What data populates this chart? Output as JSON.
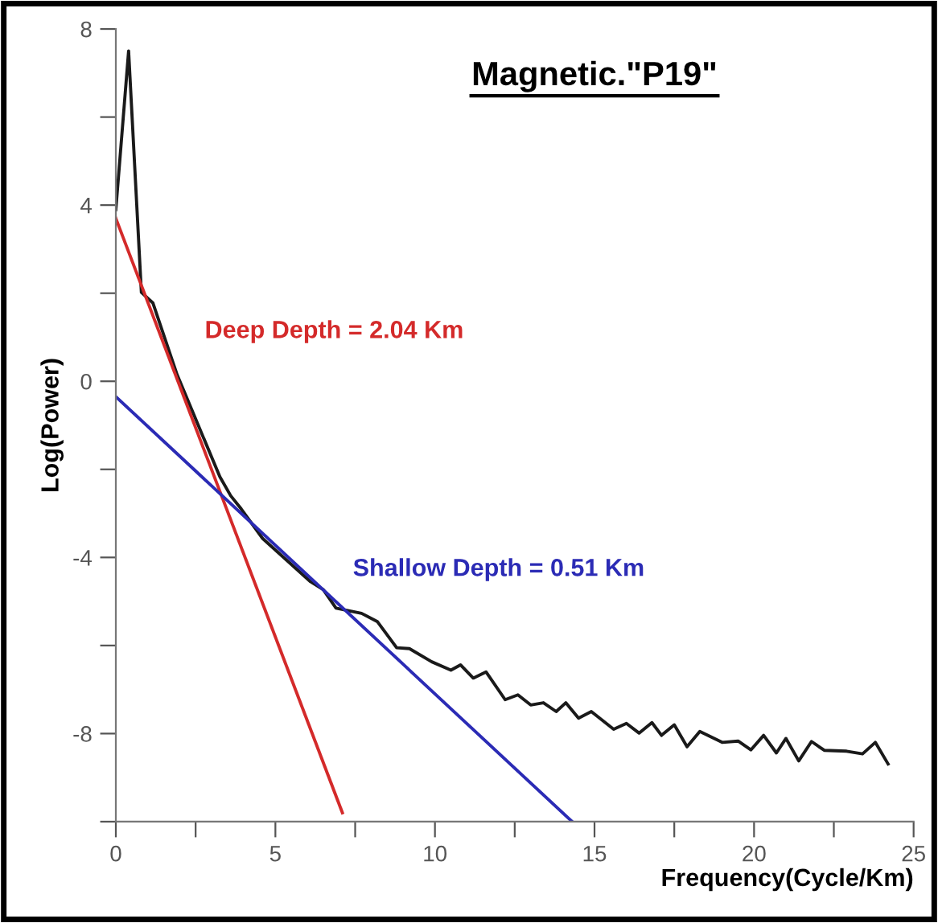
{
  "chart_data": {
    "type": "line",
    "title": "Magnetic.\"P19\"",
    "xlabel": "Frequency(Cycle/Km)",
    "ylabel": "Log(Power)",
    "xlim": [
      0,
      25
    ],
    "xticks": [
      0,
      {
        "value": 2.5,
        "label": null
      },
      5,
      {
        "value": 7.5,
        "label": null
      },
      10,
      {
        "value": 12.5,
        "label": null
      },
      15,
      {
        "value": 17.5,
        "label": null
      },
      20,
      {
        "value": 22.5,
        "label": null
      },
      25
    ],
    "ylim": [
      -10,
      8
    ],
    "yticks": [
      {
        "value": -10,
        "label": null
      },
      -8,
      {
        "value": -6,
        "label": null
      },
      -4,
      {
        "value": -2,
        "label": null
      },
      0,
      {
        "value": 2,
        "label": null
      },
      4,
      {
        "value": 6,
        "label": null
      },
      8
    ],
    "grid": false,
    "legend": false,
    "series": [
      {
        "color": "#1a1a1a",
        "x": [
          0,
          0.4,
          0.8,
          1.16,
          1.92,
          3.26,
          3.6,
          3.93,
          4.6,
          6.1,
          6.5,
          6.9,
          7.7,
          8.2,
          8.8,
          9.2,
          9.9,
          10.5,
          10.8,
          11.2,
          11.6,
          12.2,
          12.6,
          13.0,
          13.4,
          13.8,
          14.1,
          14.5,
          14.9,
          15.6,
          16.0,
          16.4,
          16.8,
          17.1,
          17.5,
          17.9,
          18.3,
          19.0,
          19.5,
          19.9,
          20.3,
          20.7,
          21.0,
          21.4,
          21.8,
          22.2,
          22.9,
          23.4,
          23.8,
          24.2
        ],
        "values": [
          3.9,
          7.5,
          2.02,
          1.78,
          0.15,
          -2.17,
          -2.6,
          -2.9,
          -3.57,
          -4.55,
          -4.73,
          -5.15,
          -5.27,
          -5.46,
          -6.05,
          -6.07,
          -6.37,
          -6.56,
          -6.44,
          -6.74,
          -6.6,
          -7.23,
          -7.12,
          -7.35,
          -7.3,
          -7.5,
          -7.3,
          -7.65,
          -7.5,
          -7.9,
          -7.77,
          -7.99,
          -7.75,
          -8.04,
          -7.8,
          -8.3,
          -7.95,
          -8.2,
          -8.17,
          -8.37,
          -8.04,
          -8.44,
          -8.11,
          -8.62,
          -8.18,
          -8.38,
          -8.4,
          -8.46,
          -8.2,
          -8.69
        ]
      },
      {
        "name": "Deep Depth = 2.04 Km",
        "color": "#d42a2a",
        "x": [
          0,
          7.1
        ],
        "values": [
          3.7,
          -9.8
        ]
      },
      {
        "name": "Shallow Depth = 0.51 Km",
        "color": "#2b2bb5",
        "x": [
          0,
          14.3
        ],
        "values": [
          -0.35,
          -10
        ]
      }
    ]
  }
}
